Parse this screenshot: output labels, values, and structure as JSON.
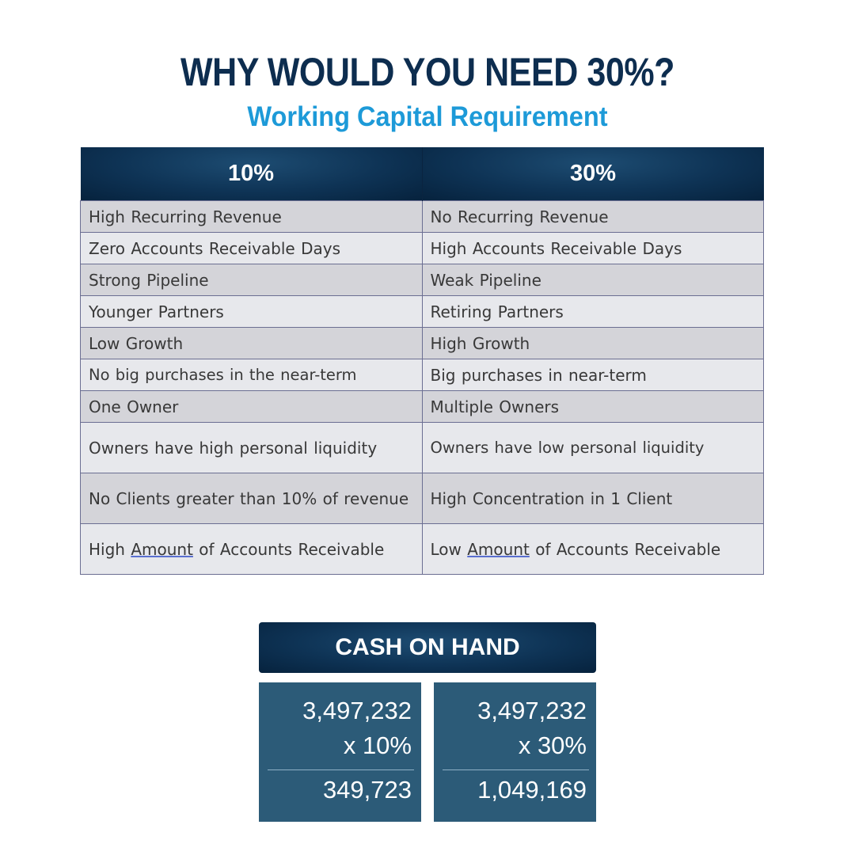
{
  "title": "WHY WOULD YOU NEED 30%?",
  "subtitle": "Working Capital Requirement",
  "table": {
    "headers": [
      "10%",
      "30%"
    ],
    "rows": [
      [
        "High Recurring Revenue",
        "No Recurring Revenue"
      ],
      [
        "Zero Accounts Receivable Days",
        "High Accounts Receivable Days"
      ],
      [
        "Strong Pipeline",
        "Weak Pipeline"
      ],
      [
        "Younger Partners",
        "Retiring Partners"
      ],
      [
        "Low Growth",
        "High Growth"
      ],
      [
        "No big purchases in the near-term",
        "Big purchases in near-term"
      ],
      [
        "One Owner",
        "Multiple Owners"
      ],
      [
        "Owners have high personal liquidity",
        "Owners have low personal liquidity"
      ],
      [
        "No Clients greater than 10% of revenue",
        "High Concentration in 1 Client"
      ],
      [
        "High Amount of Accounts Receivable",
        "Low Amount of Accounts Receivable"
      ]
    ]
  },
  "cash": {
    "title": "CASH ON HAND",
    "left": {
      "base": "3,497,232",
      "multiplier": "x 10%",
      "result": "349,723"
    },
    "right": {
      "base": "3,497,232",
      "multiplier": "x 30%",
      "result": "1,049,169"
    }
  },
  "colors": {
    "title": "#0d2d4f",
    "subtitle": "#1d9ad8",
    "header_bg": "#0e3355",
    "row_dark": "#d4d4d9",
    "row_light": "#e7e8ec",
    "calc_bg": "#2c5b78"
  }
}
